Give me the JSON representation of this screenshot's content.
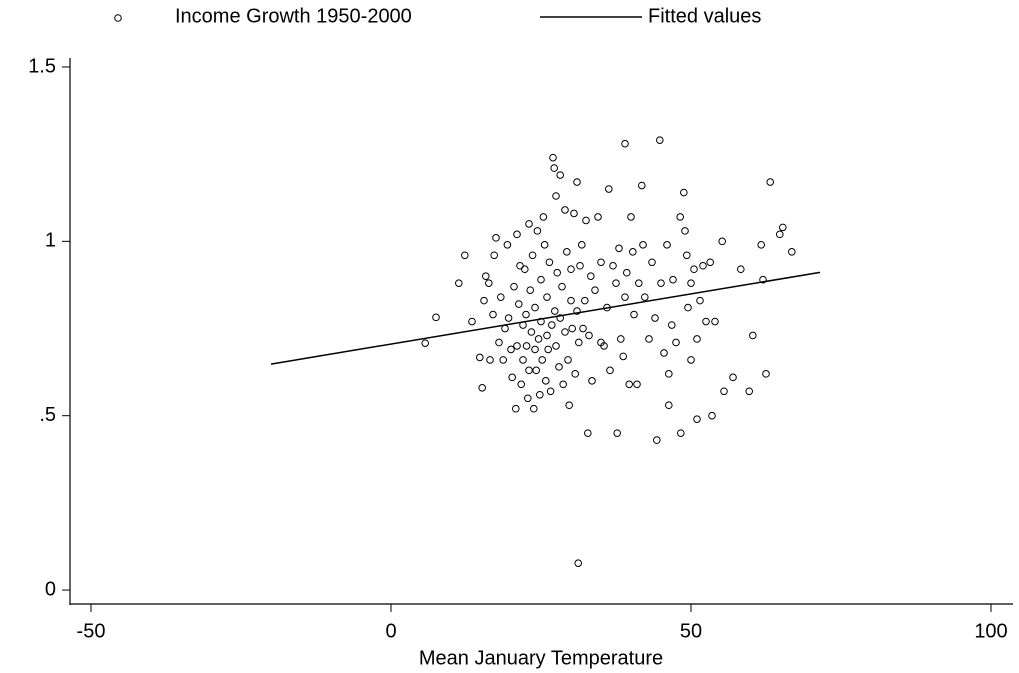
{
  "chart_data": {
    "type": "scatter",
    "x_label": "Mean January Temperature",
    "xlim": [
      -53.5,
      103.5
    ],
    "xticks": [
      -50,
      0,
      50,
      100
    ],
    "ylim": [
      -0.04,
      1.52
    ],
    "yticks": [
      0,
      {
        "value": 0.5,
        "label": ".5"
      },
      1,
      1.5
    ],
    "grid": false,
    "legend": "top",
    "series": [
      {
        "name": "Income Growth 1950-2000",
        "type": "scatter",
        "color": "#000000",
        "x": [
          5.7,
          7.5,
          11.3,
          12.3,
          13.5,
          14.8,
          15.2,
          15.5,
          15.8,
          16.3,
          16.5,
          17,
          17.2,
          17.5,
          18,
          18.3,
          18.7,
          19,
          19.4,
          19.6,
          20,
          20.2,
          20.5,
          20.8,
          21,
          21,
          21.3,
          21.5,
          21.7,
          22,
          22,
          22.3,
          22.5,
          22.6,
          22.8,
          23,
          23,
          23.2,
          23.4,
          23.6,
          23.8,
          24,
          24,
          24.2,
          24.4,
          24.6,
          24.8,
          25,
          25,
          25.2,
          25.4,
          25.6,
          25.8,
          26,
          26,
          26.2,
          26.4,
          26.6,
          26.8,
          27,
          27.2,
          27.5,
          27.3,
          27.5,
          27.7,
          28,
          28.2,
          28.2,
          28.5,
          28.7,
          29,
          29,
          29.3,
          29.5,
          29.7,
          30,
          30,
          30.2,
          30.5,
          30.7,
          31,
          31,
          31.2,
          31.3,
          31.5,
          31.8,
          32,
          32.3,
          32.5,
          32.8,
          33,
          33.3,
          33.5,
          34,
          34.5,
          35,
          35,
          35.5,
          36,
          36.3,
          36.5,
          37,
          37.5,
          37.7,
          38,
          38.3,
          38.7,
          39,
          39,
          39.3,
          39.7,
          40,
          40.3,
          40.5,
          41,
          41.3,
          41.8,
          42,
          42.3,
          43,
          43.5,
          44,
          44.3,
          44.8,
          45,
          45.5,
          46,
          46.3,
          46.3,
          46.8,
          47,
          47.5,
          48.2,
          48.3,
          48.8,
          49,
          49.3,
          49.5,
          50,
          50,
          50.5,
          51,
          51,
          51.5,
          52,
          52.5,
          53.2,
          53.5,
          54,
          55.2,
          55.5,
          57,
          58.3,
          59.7,
          60.3,
          61.7,
          62,
          62.5,
          63.2,
          64.8,
          65.3,
          66.8
        ],
        "values": [
          0.708,
          0.782,
          0.88,
          0.96,
          0.77,
          0.667,
          0.58,
          0.83,
          0.9,
          0.88,
          0.66,
          0.79,
          0.96,
          1.01,
          0.71,
          0.84,
          0.66,
          0.75,
          0.99,
          0.78,
          0.69,
          0.61,
          0.87,
          0.52,
          1.02,
          0.7,
          0.82,
          0.93,
          0.59,
          0.76,
          0.66,
          0.92,
          0.79,
          0.7,
          0.55,
          1.05,
          0.63,
          0.86,
          0.74,
          0.96,
          0.52,
          0.69,
          0.81,
          0.63,
          1.03,
          0.72,
          0.56,
          0.89,
          0.77,
          0.66,
          1.07,
          0.99,
          0.6,
          0.73,
          0.84,
          0.69,
          0.94,
          0.57,
          0.76,
          1.24,
          1.21,
          1.13,
          0.8,
          0.7,
          0.91,
          0.64,
          1.19,
          0.78,
          0.87,
          0.59,
          0.74,
          1.09,
          0.97,
          0.66,
          0.53,
          0.83,
          0.92,
          0.75,
          1.08,
          0.62,
          1.17,
          0.8,
          0.077,
          0.71,
          0.93,
          0.99,
          0.75,
          0.83,
          1.06,
          0.45,
          0.73,
          0.9,
          0.6,
          0.86,
          1.07,
          0.71,
          0.94,
          0.7,
          0.81,
          1.15,
          0.63,
          0.93,
          0.88,
          0.45,
          0.98,
          0.72,
          0.67,
          1.28,
          0.84,
          0.91,
          0.59,
          1.07,
          0.97,
          0.79,
          0.59,
          0.88,
          1.16,
          0.99,
          0.84,
          0.72,
          0.94,
          0.78,
          0.43,
          1.29,
          0.88,
          0.68,
          0.99,
          0.53,
          0.62,
          0.76,
          0.89,
          0.71,
          1.07,
          0.45,
          1.14,
          1.03,
          0.96,
          0.81,
          0.88,
          0.66,
          0.92,
          0.49,
          0.72,
          0.83,
          0.93,
          0.77,
          0.94,
          0.5,
          0.77,
          1.0,
          0.57,
          0.61,
          0.92,
          0.57,
          0.73,
          0.99,
          0.89,
          0.62,
          1.17,
          1.02,
          1.04,
          0.97
        ]
      },
      {
        "name": "Fitted values",
        "type": "line",
        "color": "#000000",
        "x": [
          -20,
          71.5
        ],
        "values": [
          0.648,
          0.911
        ]
      }
    ]
  }
}
